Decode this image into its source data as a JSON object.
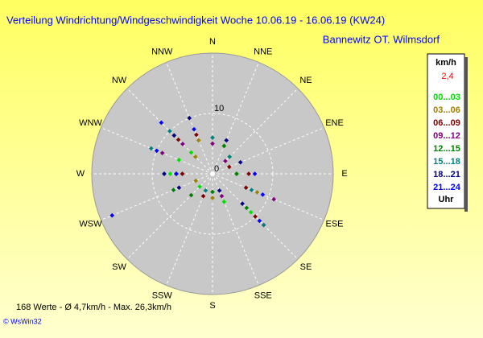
{
  "chart_data": {
    "type": "polar-scatter",
    "title": "Verteilung Windrichtung/Windgeschwindigkeit  Woche 10.06.19 - 16.06.19 (KW24)",
    "subtitle": "Bannewitz OT. Wilmsdorf",
    "direction_labels": [
      "N",
      "NNE",
      "NE",
      "ENE",
      "E",
      "ESE",
      "SE",
      "SSE",
      "S",
      "SSW",
      "SW",
      "WSW",
      "W",
      "WNW",
      "NW",
      "NNW"
    ],
    "rlim": [
      0,
      20
    ],
    "rticks": [
      0,
      10
    ],
    "legend_title": "km/h",
    "current_value": "2,4",
    "legend_footer": "Uhr",
    "series": [
      {
        "name": "00...03",
        "color": "#00e000",
        "directions": [
          135,
          315,
          270,
          90,
          225,
          292.5,
          157.5,
          45
        ],
        "values": [
          9,
          5,
          7,
          4,
          3,
          6,
          5,
          4
        ]
      },
      {
        "name": "03...06",
        "color": "#a08000",
        "directions": [
          135,
          270,
          315,
          22.5,
          112.5,
          247.5,
          180,
          337.5
        ],
        "values": [
          11,
          6,
          4,
          5,
          8,
          3,
          4,
          6
        ]
      },
      {
        "name": "06...09",
        "color": "#800000",
        "directions": [
          135,
          315,
          90,
          270,
          202.5,
          67.5,
          337.5,
          112.5
        ],
        "values": [
          10,
          8,
          6,
          5,
          4,
          3,
          7,
          6
        ]
      },
      {
        "name": "09...12",
        "color": "#800080",
        "directions": [
          112.5,
          135,
          315,
          270,
          0,
          157.5,
          292.5,
          45
        ],
        "values": [
          11,
          12,
          7,
          6,
          5,
          4,
          9,
          3
        ]
      },
      {
        "name": "12...15",
        "color": "#008000",
        "directions": [
          135,
          225,
          270,
          315,
          90,
          180,
          22.5,
          247.5
        ],
        "values": [
          8,
          5,
          6,
          9,
          4,
          3,
          5,
          7
        ]
      },
      {
        "name": "15...18",
        "color": "#008080",
        "directions": [
          135,
          315,
          292.5,
          270,
          45,
          112.5,
          202.5,
          0
        ],
        "values": [
          12,
          10,
          11,
          8,
          4,
          7,
          3,
          6
        ]
      },
      {
        "name": "18...21",
        "color": "#000080",
        "directions": [
          135,
          315,
          270,
          337.5,
          67.5,
          247.5,
          157.5,
          22.5
        ],
        "values": [
          7,
          9,
          8,
          10,
          5,
          6,
          3,
          6
        ]
      },
      {
        "name": "21...24",
        "color": "#0000ff",
        "directions": [
          112.5,
          135,
          315,
          270,
          247.5,
          90,
          292.5,
          337.5
        ],
        "values": [
          9,
          11,
          12,
          6,
          18,
          7,
          10,
          8
        ]
      }
    ],
    "footer": "168 Werte   -   Ø 4,7km/h   -   Max. 26,3km/h",
    "credit": "© WsWin32"
  }
}
